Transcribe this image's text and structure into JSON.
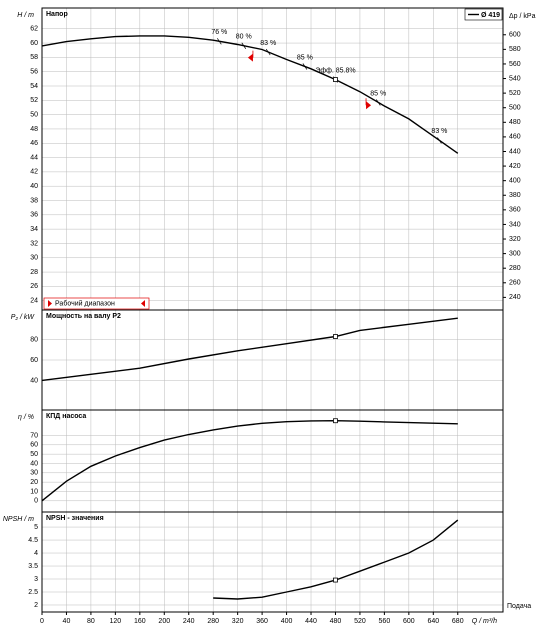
{
  "chart_data": [
    {
      "type": "line",
      "title": "Напор",
      "ylabel": "H / m",
      "y2label": "Δp / kPa",
      "x": [
        0,
        40,
        80,
        120,
        160,
        200,
        240,
        280,
        320,
        360,
        400,
        440,
        480,
        520,
        560,
        600,
        640,
        680
      ],
      "series": [
        {
          "name": "Ø 419",
          "color": "#000000",
          "values": [
            59.6,
            60.2,
            60.6,
            60.9,
            61.0,
            61.0,
            60.8,
            60.4,
            59.8,
            59.1,
            57.7,
            56.4,
            54.9,
            53.2,
            51.2,
            49.4,
            47.0,
            44.6
          ]
        }
      ],
      "ylim": [
        22.7,
        64.9
      ],
      "yticks": [
        24,
        26,
        28,
        30,
        32,
        34,
        36,
        38,
        40,
        42,
        44,
        46,
        48,
        50,
        52,
        54,
        56,
        58,
        60,
        62
      ],
      "y2lim": [
        222.7,
        636.7
      ],
      "y2ticks": [
        240,
        260,
        280,
        300,
        320,
        340,
        360,
        380,
        400,
        420,
        440,
        460,
        480,
        500,
        520,
        540,
        560,
        580,
        600
      ],
      "annotations": [
        {
          "text": "76 %",
          "x": 290
        },
        {
          "text": "80 %",
          "x": 330
        },
        {
          "text": "83 %",
          "x": 370
        },
        {
          "text": "85 %",
          "x": 430
        },
        {
          "text": "Эфф. 85.8%",
          "x": 480
        },
        {
          "text": "85 %",
          "x": 550
        },
        {
          "text": "83 %",
          "x": 650
        }
      ],
      "range": {
        "label": "Рабочий диапазон",
        "x": [
          345,
          530
        ],
        "color": "#e00000"
      },
      "point": [
        480,
        54.9
      ],
      "grid": true
    },
    {
      "type": "line",
      "title": "Мощность на валу P2",
      "ylabel": "P₂ / kW",
      "x": [
        0,
        80,
        160,
        240,
        320,
        400,
        480,
        520,
        600,
        680
      ],
      "series": [
        {
          "color": "#000000",
          "values": [
            40,
            46,
            52,
            61,
            69,
            76,
            83,
            89,
            95,
            101
          ]
        }
      ],
      "ylim": [
        11,
        109
      ],
      "yticks": [
        40,
        60,
        80
      ],
      "point": [
        480,
        83
      ],
      "grid": true
    },
    {
      "type": "line",
      "title": "КПД насоса",
      "ylabel": "η / %",
      "x": [
        0,
        40,
        80,
        120,
        160,
        200,
        240,
        280,
        320,
        360,
        400,
        440,
        480,
        520,
        560,
        600,
        640,
        680
      ],
      "series": [
        {
          "color": "#000000",
          "values": [
            0,
            21,
            37,
            48,
            57,
            65,
            71,
            76,
            80,
            83,
            84.8,
            85.6,
            85.8,
            85.3,
            84.6,
            83.8,
            83.2,
            82.5
          ]
        }
      ],
      "ylim": [
        -12,
        97.3
      ],
      "yticks": [
        0,
        10,
        20,
        30,
        40,
        50,
        60,
        70
      ],
      "point": [
        480,
        85.8
      ],
      "grid": true
    },
    {
      "type": "line",
      "title": "NPSH - значения",
      "ylabel": "NPSH / m",
      "xlabel": "Q / m³/h",
      "xtitle": "Подача",
      "x": [
        280,
        320,
        360,
        400,
        440,
        480,
        520,
        560,
        600,
        640,
        680
      ],
      "series": [
        {
          "color": "#000000",
          "values": [
            2.27,
            2.23,
            2.3,
            2.5,
            2.7,
            2.96,
            3.3,
            3.65,
            4.0,
            4.5,
            5.27
          ]
        }
      ],
      "ylim": [
        1.73,
        5.58
      ],
      "yticks": [
        2,
        2.5,
        3,
        3.5,
        4,
        4.5,
        5
      ],
      "xlim": [
        0,
        754
      ],
      "xticks": [
        0,
        40,
        80,
        120,
        160,
        200,
        240,
        280,
        320,
        360,
        400,
        440,
        480,
        520,
        560,
        600,
        640,
        680
      ],
      "point": [
        480,
        2.96
      ],
      "grid": true
    }
  ]
}
